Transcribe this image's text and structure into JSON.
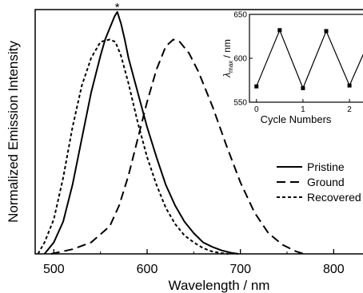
{
  "chart_data": [
    {
      "type": "line",
      "title": "",
      "xlabel": "Wavelength / nm",
      "ylabel": "Normalized Emission Intensity",
      "xlim": [
        480,
        840
      ],
      "ylim": [
        0,
        1.06
      ],
      "x_ticks": [
        500,
        600,
        700,
        800
      ],
      "x_tick_labels": [
        "500",
        "600",
        "700",
        "800"
      ],
      "y_ticks_shown": false,
      "grid": false,
      "legend_position": "right",
      "peak_marker": "*",
      "series": [
        {
          "name": "Pristine",
          "line_style": "solid",
          "x": [
            490,
            500,
            510,
            520,
            530,
            540,
            550,
            555,
            560,
            565,
            568,
            572,
            576,
            580,
            590,
            600,
            610,
            620,
            630,
            640,
            650,
            660,
            670,
            680,
            690,
            698
          ],
          "y": [
            0.0,
            0.05,
            0.14,
            0.3,
            0.5,
            0.7,
            0.86,
            0.93,
            0.98,
            1.03,
            1.05,
            1.0,
            0.93,
            0.85,
            0.7,
            0.55,
            0.42,
            0.3,
            0.21,
            0.14,
            0.09,
            0.05,
            0.03,
            0.015,
            0.005,
            0.0
          ]
        },
        {
          "name": "Ground",
          "line_style": "dashed",
          "x": [
            497,
            520,
            540,
            560,
            570,
            580,
            590,
            600,
            610,
            620,
            628,
            635,
            645,
            655,
            670,
            685,
            700,
            715,
            730,
            745,
            760,
            768
          ],
          "y": [
            0.0,
            0.02,
            0.05,
            0.12,
            0.21,
            0.34,
            0.5,
            0.66,
            0.8,
            0.9,
            0.93,
            0.92,
            0.87,
            0.79,
            0.64,
            0.47,
            0.31,
            0.18,
            0.09,
            0.04,
            0.01,
            0.0
          ]
        },
        {
          "name": "Recovered",
          "line_style": "dotted",
          "x": [
            483,
            490,
            500,
            510,
            520,
            530,
            540,
            550,
            560,
            566,
            572,
            580,
            590,
            600,
            610,
            620,
            630,
            640,
            650,
            660,
            670,
            680,
            687
          ],
          "y": [
            0.0,
            0.05,
            0.15,
            0.33,
            0.55,
            0.73,
            0.85,
            0.92,
            0.93,
            0.92,
            0.86,
            0.74,
            0.57,
            0.42,
            0.3,
            0.2,
            0.13,
            0.08,
            0.05,
            0.025,
            0.01,
            0.003,
            0.0
          ]
        }
      ]
    },
    {
      "type": "line",
      "title": "",
      "xlabel": "Cycle Numbers",
      "ylabel": "λmax / nm",
      "xlim": [
        -0.15,
        2.6
      ],
      "ylim": [
        550,
        650
      ],
      "x_ticks": [
        0,
        1,
        2
      ],
      "x_tick_labels": [
        "0",
        "1",
        "2"
      ],
      "y_ticks": [
        550,
        600,
        650
      ],
      "y_tick_labels": [
        "550",
        "600",
        "650"
      ],
      "grid": false,
      "series": [
        {
          "marker": "square",
          "x": [
            0,
            0.5,
            1,
            1.5,
            2,
            2.5
          ],
          "y": [
            568,
            632,
            566,
            631,
            569,
            629
          ]
        }
      ]
    }
  ]
}
